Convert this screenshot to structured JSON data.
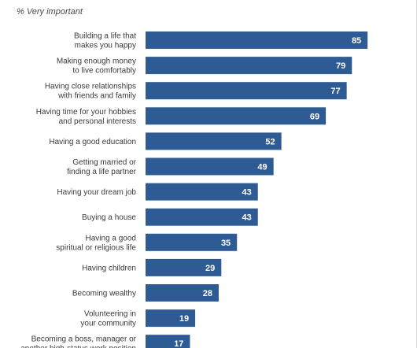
{
  "chart_data": {
    "type": "bar",
    "orientation": "horizontal",
    "subtitle": "% Very important",
    "categories": [
      "Building a life that\nmakes you happy",
      "Making enough money\nto live comfortably",
      "Having close relationships\nwith friends and family",
      "Having time for your hobbies\nand personal interests",
      "Having a good education",
      "Getting married or\nfinding a life partner",
      "Having your dream job",
      "Buying a house",
      "Having a good\nspiritual or religious life",
      "Having children",
      "Becoming wealthy",
      "Volunteering in\nyour community",
      "Becoming a boss, manager or\nanother high-status work position"
    ],
    "values": [
      85,
      79,
      77,
      69,
      52,
      49,
      43,
      43,
      35,
      29,
      28,
      19,
      17
    ],
    "xlim": [
      0,
      100
    ],
    "bar_color": "#2e5b93",
    "value_label_color": "#ffffff",
    "grid": false,
    "legend": "none"
  }
}
